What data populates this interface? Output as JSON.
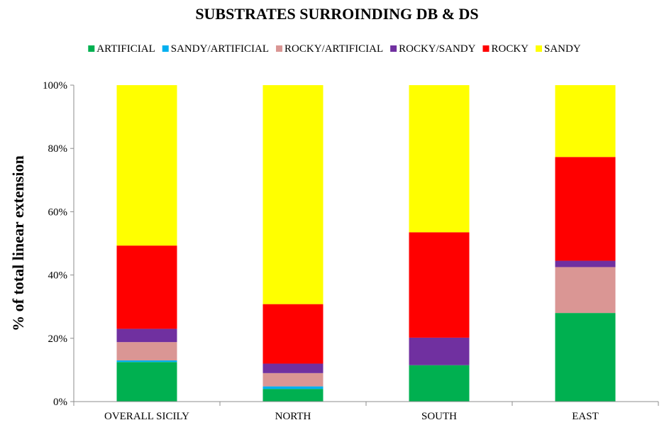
{
  "chart_data": {
    "type": "bar",
    "stacked": true,
    "title": "SUBSTRATES SURROINDING DB & DS",
    "xlabel": "",
    "ylabel": "% of total linear extension",
    "categories": [
      "OVERALL SICILY",
      "NORTH",
      "SOUTH",
      "EAST"
    ],
    "ylim": [
      0,
      100
    ],
    "yticks": [
      0,
      20,
      40,
      60,
      80,
      100
    ],
    "ytick_labels": [
      "0%",
      "20%",
      "40%",
      "60%",
      "80%",
      "100%"
    ],
    "legend_position": "top",
    "grid": false,
    "series": [
      {
        "name": "ARTIFICIAL",
        "color": "#00b050",
        "values": [
          12.5,
          4.0,
          11.5,
          28.0
        ]
      },
      {
        "name": "SANDY/ARTIFICIAL",
        "color": "#00b0f0",
        "values": [
          0.5,
          0.8,
          0.0,
          0.0
        ]
      },
      {
        "name": "ROCKY/ARTIFICIAL",
        "color": "#da9694",
        "values": [
          5.8,
          4.2,
          0.0,
          14.5
        ]
      },
      {
        "name": "ROCKY/SANDY",
        "color": "#7030a0",
        "values": [
          4.2,
          3.0,
          8.7,
          2.0
        ]
      },
      {
        "name": "ROCKY",
        "color": "#ff0000",
        "values": [
          26.3,
          18.8,
          33.3,
          32.8
        ]
      },
      {
        "name": "SANDY",
        "color": "#ffff00",
        "values": [
          50.7,
          69.2,
          46.5,
          22.7
        ]
      }
    ]
  }
}
